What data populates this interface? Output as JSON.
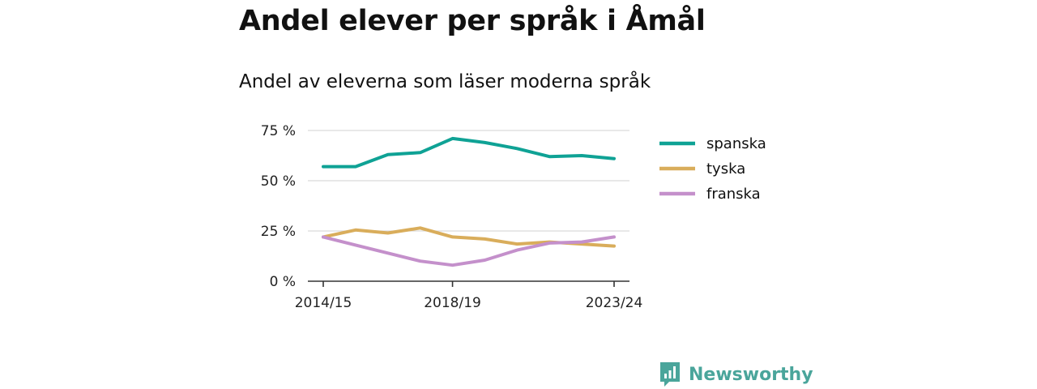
{
  "title": "Andel elever per språk i Åmål",
  "subtitle": "Andel av eleverna som läser moderna språk",
  "brand": "Newsworthy",
  "colors": {
    "spanska": "#0fa295",
    "tyska": "#d9ad5b",
    "franska": "#c490cb",
    "brand": "#4aa59b"
  },
  "chart_data": {
    "type": "line",
    "x": [
      "2014/15",
      "2015/16",
      "2016/17",
      "2017/18",
      "2018/19",
      "2019/20",
      "2020/21",
      "2021/22",
      "2022/23",
      "2023/24"
    ],
    "series": [
      {
        "name": "spanska",
        "values": [
          57,
          57,
          63,
          64,
          71,
          69,
          66,
          62,
          62.5,
          61
        ]
      },
      {
        "name": "tyska",
        "values": [
          22,
          25.5,
          24,
          26.5,
          22,
          21,
          18.5,
          19.5,
          18.5,
          17.5
        ]
      },
      {
        "name": "franska",
        "values": [
          22,
          18,
          14,
          10,
          8,
          10.5,
          15.5,
          19,
          19.5,
          22
        ]
      }
    ],
    "xtick_labels": [
      "2014/15",
      "2018/19",
      "2023/24"
    ],
    "yticks": [
      0,
      25,
      50,
      75
    ],
    "ytick_labels": [
      "0 %",
      "25 %",
      "50 %",
      "75 %"
    ],
    "ylim": [
      0,
      75
    ],
    "grid": true,
    "legend": "right"
  }
}
